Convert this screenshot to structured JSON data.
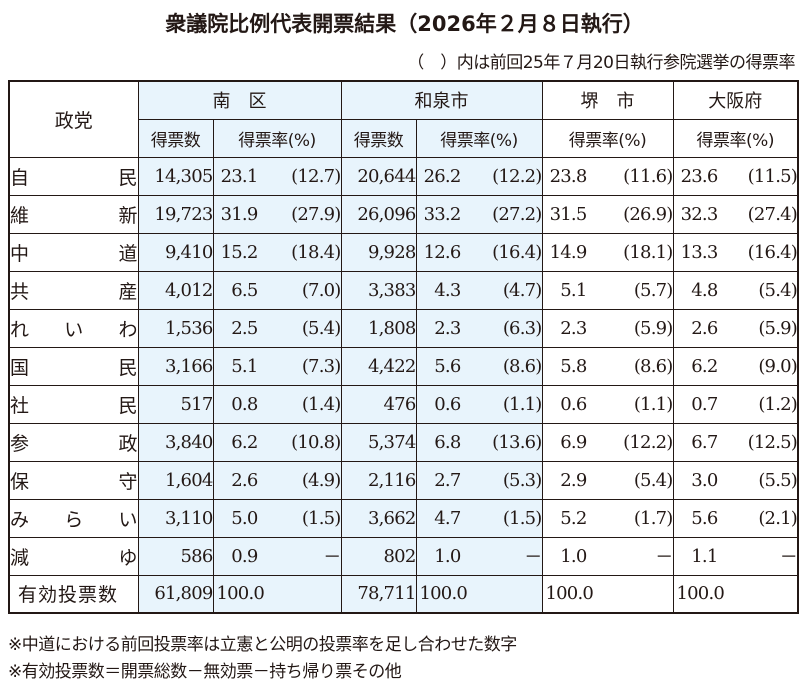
{
  "title": "衆議院比例代表開票結果（2026年２月８日執行）",
  "subtitle": "（　）内は前回25年７月20日執行参院選挙の得票率",
  "table": {
    "party_header": "政党",
    "regions": [
      {
        "name": "南　区",
        "cols": [
          "得票数",
          "得票率(%)"
        ]
      },
      {
        "name": "和泉市",
        "cols": [
          "得票数",
          "得票率(%)"
        ]
      },
      {
        "name": "堺　市",
        "cols": [
          "得票率(%)"
        ]
      },
      {
        "name": "大阪府",
        "cols": [
          "得票率(%)"
        ]
      }
    ],
    "rows": [
      {
        "party": [
          "自",
          "民"
        ],
        "minami_votes": "14,305",
        "minami_rate": "23.1",
        "minami_prev": "(12.7)",
        "izumi_votes": "20,644",
        "izumi_rate": "26.2",
        "izumi_prev": "(12.2)",
        "sakai_rate": "23.8",
        "sakai_prev": "(11.6)",
        "osaka_rate": "23.6",
        "osaka_prev": "(11.5)"
      },
      {
        "party": [
          "維",
          "新"
        ],
        "minami_votes": "19,723",
        "minami_rate": "31.9",
        "minami_prev": "(27.9)",
        "izumi_votes": "26,096",
        "izumi_rate": "33.2",
        "izumi_prev": "(27.2)",
        "sakai_rate": "31.5",
        "sakai_prev": "(26.9)",
        "osaka_rate": "32.3",
        "osaka_prev": "(27.4)"
      },
      {
        "party": [
          "中",
          "道"
        ],
        "minami_votes": "9,410",
        "minami_rate": "15.2",
        "minami_prev": "(18.4)",
        "izumi_votes": "9,928",
        "izumi_rate": "12.6",
        "izumi_prev": "(16.4)",
        "sakai_rate": "14.9",
        "sakai_prev": "(18.1)",
        "osaka_rate": "13.3",
        "osaka_prev": "(16.4)"
      },
      {
        "party": [
          "共",
          "産"
        ],
        "minami_votes": "4,012",
        "minami_rate": "6.5",
        "minami_prev": "(7.0)",
        "izumi_votes": "3,383",
        "izumi_rate": "4.3",
        "izumi_prev": "(4.7)",
        "sakai_rate": "5.1",
        "sakai_prev": "(5.7)",
        "osaka_rate": "4.8",
        "osaka_prev": "(5.4)"
      },
      {
        "party": [
          "れ",
          "い",
          "わ"
        ],
        "minami_votes": "1,536",
        "minami_rate": "2.5",
        "minami_prev": "(5.4)",
        "izumi_votes": "1,808",
        "izumi_rate": "2.3",
        "izumi_prev": "(6.3)",
        "sakai_rate": "2.3",
        "sakai_prev": "(5.9)",
        "osaka_rate": "2.6",
        "osaka_prev": "(5.9)"
      },
      {
        "party": [
          "国",
          "民"
        ],
        "minami_votes": "3,166",
        "minami_rate": "5.1",
        "minami_prev": "(7.3)",
        "izumi_votes": "4,422",
        "izumi_rate": "5.6",
        "izumi_prev": "(8.6)",
        "sakai_rate": "5.8",
        "sakai_prev": "(8.6)",
        "osaka_rate": "6.2",
        "osaka_prev": "(9.0)"
      },
      {
        "party": [
          "社",
          "民"
        ],
        "minami_votes": "517",
        "minami_rate": "0.8",
        "minami_prev": "(1.4)",
        "izumi_votes": "476",
        "izumi_rate": "0.6",
        "izumi_prev": "(1.1)",
        "sakai_rate": "0.6",
        "sakai_prev": "(1.1)",
        "osaka_rate": "0.7",
        "osaka_prev": "(1.2)"
      },
      {
        "party": [
          "参",
          "政"
        ],
        "minami_votes": "3,840",
        "minami_rate": "6.2",
        "minami_prev": "(10.8)",
        "izumi_votes": "5,374",
        "izumi_rate": "6.8",
        "izumi_prev": "(13.6)",
        "sakai_rate": "6.9",
        "sakai_prev": "(12.2)",
        "osaka_rate": "6.7",
        "osaka_prev": "(12.5)"
      },
      {
        "party": [
          "保",
          "守"
        ],
        "minami_votes": "1,604",
        "minami_rate": "2.6",
        "minami_prev": "(4.9)",
        "izumi_votes": "2,116",
        "izumi_rate": "2.7",
        "izumi_prev": "(5.3)",
        "sakai_rate": "2.9",
        "sakai_prev": "(5.4)",
        "osaka_rate": "3.0",
        "osaka_prev": "(5.5)"
      },
      {
        "party": [
          "み",
          "ら",
          "い"
        ],
        "minami_votes": "3,110",
        "minami_rate": "5.0",
        "minami_prev": "(1.5)",
        "izumi_votes": "3,662",
        "izumi_rate": "4.7",
        "izumi_prev": "(1.5)",
        "sakai_rate": "5.2",
        "sakai_prev": "(1.7)",
        "osaka_rate": "5.6",
        "osaka_prev": "(2.1)"
      },
      {
        "party": [
          "減",
          "ゆ"
        ],
        "minami_votes": "586",
        "minami_rate": "0.9",
        "minami_prev": "－",
        "izumi_votes": "802",
        "izumi_rate": "1.0",
        "izumi_prev": "－",
        "sakai_rate": "1.0",
        "sakai_prev": "－",
        "osaka_rate": "1.1",
        "osaka_prev": "－"
      }
    ],
    "total": {
      "label": "有効投票数",
      "minami_votes": "61,809",
      "minami_rate": "100.0",
      "izumi_votes": "78,711",
      "izumi_rate": "100.0",
      "sakai_rate": "100.0",
      "osaka_rate": "100.0"
    }
  },
  "notes": [
    "※中道における前回投票率は立憲と公明の投票率を足し合わせた数字",
    "※有効投票数＝開票総数－無効票－持ち帰り票その他"
  ],
  "colors": {
    "highlight_bg": "#e8f4fc",
    "border": "#231815",
    "text": "#231815"
  }
}
